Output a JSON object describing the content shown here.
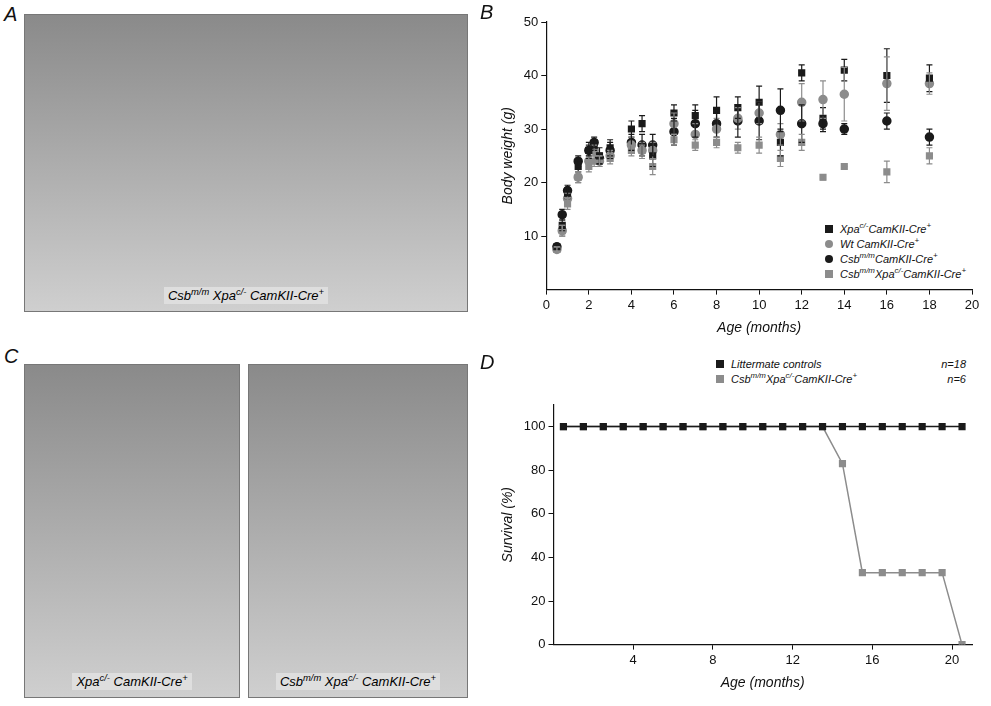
{
  "photos": [
    {
      "panel": "A",
      "captions": [
        [
          {
            "text": "Csb"
          },
          {
            "text": "m/m",
            "sup": true
          },
          {
            "text": " Xpa"
          },
          {
            "text": "c/-",
            "sup": true
          },
          {
            "text": " CamKII-Cre"
          },
          {
            "text": "+",
            "sup": true
          }
        ]
      ]
    },
    {
      "panel": "C",
      "captions": [
        [
          {
            "text": "Xpa"
          },
          {
            "text": "c/-",
            "sup": true
          },
          {
            "text": " CamKII-Cre"
          },
          {
            "text": "+",
            "sup": true
          }
        ],
        [
          {
            "text": "Csb"
          },
          {
            "text": "m/m",
            "sup": true
          },
          {
            "text": " Xpa"
          },
          {
            "text": "c/-",
            "sup": true
          },
          {
            "text": " CamKII-Cre"
          },
          {
            "text": "+",
            "sup": true
          }
        ]
      ]
    }
  ],
  "chart_data": [
    {
      "panel": "B",
      "type": "scatter",
      "x_label": "Age (months)",
      "y_label": "Body weight (g)",
      "x": [
        0.5,
        0.75,
        1,
        1.5,
        2,
        2.25,
        2.5,
        3,
        4,
        4.5,
        5,
        6,
        7,
        8,
        9,
        10,
        11,
        12,
        13,
        14,
        16,
        18
      ],
      "xlim": [
        0,
        20
      ],
      "xticks": [
        0,
        2,
        4,
        6,
        8,
        10,
        12,
        14,
        16,
        18,
        20
      ],
      "ylim": [
        0,
        50
      ],
      "yticks": [
        10,
        20,
        30,
        40,
        50
      ],
      "grid": false,
      "legend": "lower right",
      "series": [
        {
          "name": [
            {
              "text": "Xpa"
            },
            {
              "text": "c/-",
              "sup": true
            },
            {
              "text": "CamKII-Cre"
            },
            {
              "text": "+",
              "sup": true
            }
          ],
          "color": "#1a1a1a",
          "marker": "square",
          "values": [
            8,
            12,
            18,
            23,
            26,
            27,
            25,
            26.5,
            30,
            31,
            25,
            33,
            32.5,
            33.5,
            34,
            35,
            27.5,
            40.5,
            32,
            41,
            40,
            39.5
          ],
          "errors": [
            0.5,
            1,
            1,
            1,
            1.5,
            1,
            1.5,
            1.5,
            1.5,
            1.5,
            2,
            1.5,
            2,
            2.5,
            2,
            3,
            2.5,
            1.5,
            2,
            2,
            5,
            2.5
          ]
        },
        {
          "name": [
            {
              "text": "Wt CamKII-Cre"
            },
            {
              "text": "+",
              "sup": true
            }
          ],
          "color": "#8c8c8c",
          "marker": "circle",
          "values": [
            7.5,
            11,
            17,
            21,
            24,
            26,
            24,
            25,
            27,
            26,
            26,
            31,
            29,
            30,
            32,
            33,
            29,
            35,
            35.5,
            36.5,
            38.5,
            38.5
          ],
          "errors": [
            0.5,
            1,
            1,
            1,
            1,
            1,
            1,
            1,
            1.5,
            1.5,
            1.5,
            2,
            2,
            2,
            2,
            2,
            2,
            3.5,
            3.5,
            5,
            5,
            2
          ]
        },
        {
          "name": [
            {
              "text": "Csb"
            },
            {
              "text": "m/m",
              "sup": true
            },
            {
              "text": "CamKII-Cre"
            },
            {
              "text": "+",
              "sup": true
            }
          ],
          "color": "#1a1a1a",
          "marker": "circle",
          "values": [
            8,
            14,
            18.5,
            24,
            26,
            27.5,
            24.5,
            26,
            27.5,
            27,
            27,
            29.5,
            31,
            31,
            31.5,
            31.5,
            33.5,
            31,
            31,
            30,
            31.5,
            28.5
          ],
          "errors": [
            0.5,
            1,
            1,
            1,
            1,
            1,
            1,
            1.5,
            1.5,
            2,
            2,
            2.5,
            2.5,
            2.5,
            3,
            3.5,
            4,
            3.5,
            1.5,
            1,
            1.5,
            1.5
          ]
        },
        {
          "name": [
            {
              "text": "Csb"
            },
            {
              "text": "m/m",
              "sup": true
            },
            {
              "text": "Xpa"
            },
            {
              "text": "c/-",
              "sup": true
            },
            {
              "text": "CamKII-Cre"
            },
            {
              "text": "+",
              "sup": true
            }
          ],
          "color": "#8c8c8c",
          "marker": "square",
          "values": [
            7.5,
            11,
            16,
            21,
            23,
            24,
            24,
            24.5,
            26,
            26,
            23,
            28,
            27,
            27.5,
            26.5,
            27,
            24.5,
            27.5,
            21,
            23,
            22,
            25
          ],
          "errors": [
            0.5,
            1,
            1,
            1,
            1,
            1,
            1,
            1,
            1,
            1,
            1.5,
            1,
            1,
            1,
            1,
            1.5,
            1.5,
            1.5,
            0.5,
            0,
            2,
            1.5
          ]
        }
      ]
    },
    {
      "panel": "D",
      "type": "line",
      "x_label": "Age (months)",
      "y_label": "Survival (%)",
      "x": [
        0.5,
        1.5,
        2.5,
        3.5,
        4.5,
        5.5,
        6.5,
        7.5,
        8.5,
        9.5,
        10.5,
        11.5,
        12.5,
        13.5,
        14.5,
        15.5,
        16.5,
        17.5,
        18.5,
        19.5,
        20.5
      ],
      "xlim": [
        0,
        21
      ],
      "xticks": [
        4,
        8,
        12,
        16,
        20
      ],
      "ylim": [
        0,
        110
      ],
      "yticks": [
        0,
        20,
        40,
        60,
        80,
        100
      ],
      "grid": false,
      "legend": "top right",
      "series": [
        {
          "name": [
            {
              "text": "Littermate controls"
            }
          ],
          "annotation": "n=18",
          "color": "#1a1a1a",
          "marker": "square",
          "line_style": "solid",
          "values": [
            100,
            100,
            100,
            100,
            100,
            100,
            100,
            100,
            100,
            100,
            100,
            100,
            100,
            100,
            100,
            100,
            100,
            100,
            100,
            100,
            100
          ]
        },
        {
          "name": [
            {
              "text": "Csb"
            },
            {
              "text": "m/m",
              "sup": true
            },
            {
              "text": "Xpa"
            },
            {
              "text": "c/-",
              "sup": true
            },
            {
              "text": "CamKII-Cre"
            },
            {
              "text": "+",
              "sup": true
            }
          ],
          "annotation": "n=6",
          "color": "#8c8c8c",
          "marker": "square",
          "line_style": "solid",
          "values": [
            100,
            100,
            100,
            100,
            100,
            100,
            100,
            100,
            100,
            100,
            100,
            100,
            100,
            100,
            83,
            33,
            33,
            33,
            33,
            33,
            0
          ]
        }
      ]
    }
  ]
}
